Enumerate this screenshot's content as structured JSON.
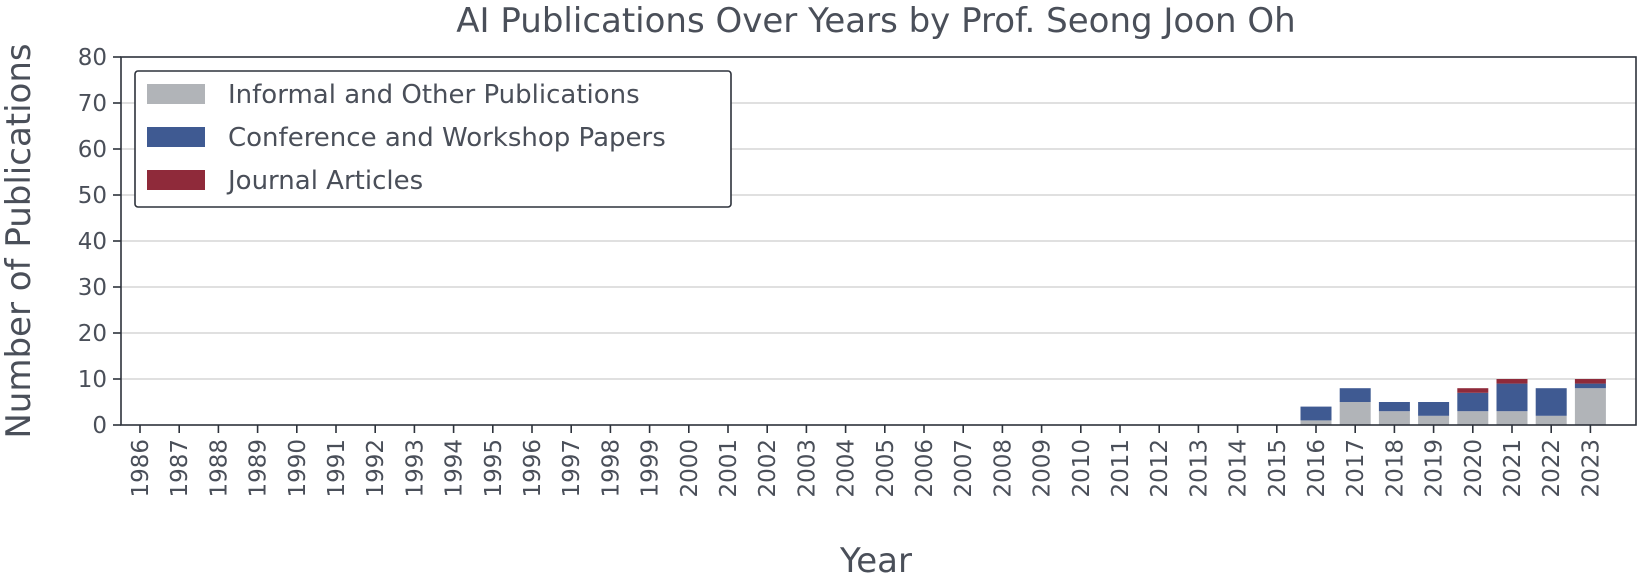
{
  "chart_data": {
    "type": "bar",
    "stacked": true,
    "title": "AI Publications Over Years by Prof. Seong Joon Oh",
    "xlabel": "Year",
    "ylabel": "Number of Publications",
    "ylim": [
      0,
      80
    ],
    "yticks": [
      0,
      10,
      20,
      30,
      40,
      50,
      60,
      70,
      80
    ],
    "grid": "horizontal",
    "legend_position": "top-left",
    "categories": [
      "1986",
      "1987",
      "1988",
      "1989",
      "1990",
      "1991",
      "1992",
      "1993",
      "1994",
      "1995",
      "1996",
      "1997",
      "1998",
      "1999",
      "2000",
      "2001",
      "2002",
      "2003",
      "2004",
      "2005",
      "2006",
      "2007",
      "2008",
      "2009",
      "2010",
      "2011",
      "2012",
      "2013",
      "2014",
      "2015",
      "2016",
      "2017",
      "2018",
      "2019",
      "2020",
      "2021",
      "2022",
      "2023"
    ],
    "series": [
      {
        "name": "Informal and Other Publications",
        "color": "#b1b4b8",
        "values": [
          0,
          0,
          0,
          0,
          0,
          0,
          0,
          0,
          0,
          0,
          0,
          0,
          0,
          0,
          0,
          0,
          0,
          0,
          0,
          0,
          0,
          0,
          0,
          0,
          0,
          0,
          0,
          0,
          0,
          0,
          1,
          5,
          3,
          2,
          3,
          3,
          2,
          8
        ]
      },
      {
        "name": "Conference and Workshop Papers",
        "color": "#3f5a92",
        "values": [
          0,
          0,
          0,
          0,
          0,
          0,
          0,
          0,
          0,
          0,
          0,
          0,
          0,
          0,
          0,
          0,
          0,
          0,
          0,
          0,
          0,
          0,
          0,
          0,
          0,
          0,
          0,
          0,
          0,
          0,
          3,
          3,
          2,
          3,
          4,
          6,
          6,
          1
        ]
      },
      {
        "name": "Journal Articles",
        "color": "#8f2a3a",
        "values": [
          0,
          0,
          0,
          0,
          0,
          0,
          0,
          0,
          0,
          0,
          0,
          0,
          0,
          0,
          0,
          0,
          0,
          0,
          0,
          0,
          0,
          0,
          0,
          0,
          0,
          0,
          0,
          0,
          0,
          0,
          0,
          0,
          0,
          0,
          1,
          1,
          0,
          1
        ]
      }
    ]
  }
}
